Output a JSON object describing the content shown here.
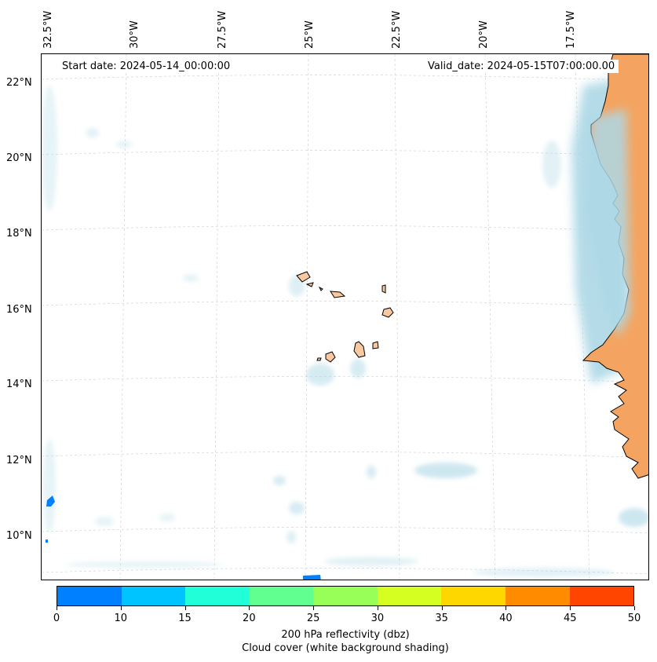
{
  "map": {
    "start_date": "Start date: 2024-05-14_00:00:00",
    "valid_date": "Valid_date: 2024-05-15T07:00:00.00",
    "lon_labels": [
      "32.5°W",
      "30°W",
      "27.5°W",
      "25°W",
      "22.5°W",
      "20°W",
      "17.5°W"
    ],
    "lat_labels": [
      "22°N",
      "20°N",
      "18°N",
      "16°N",
      "14°N",
      "12°N",
      "10°N"
    ],
    "land_color": "#f4a460",
    "cloud_color": "#add8e6",
    "reflectivity_low_color": "#007fff",
    "island_color": "#f8c8a0"
  },
  "colorbar": {
    "ticks": [
      "0",
      "10",
      "15",
      "20",
      "25",
      "30",
      "35",
      "40",
      "45",
      "50"
    ],
    "colors": [
      "#007fff",
      "#00c4ff",
      "#20ffd8",
      "#60ff90",
      "#98ff58",
      "#d4ff20",
      "#ffd700",
      "#ff8c00",
      "#ff4500"
    ],
    "label_line1": "200 hPa reflectivity (dbz)",
    "label_line2": "Cloud cover (white background shading)"
  }
}
